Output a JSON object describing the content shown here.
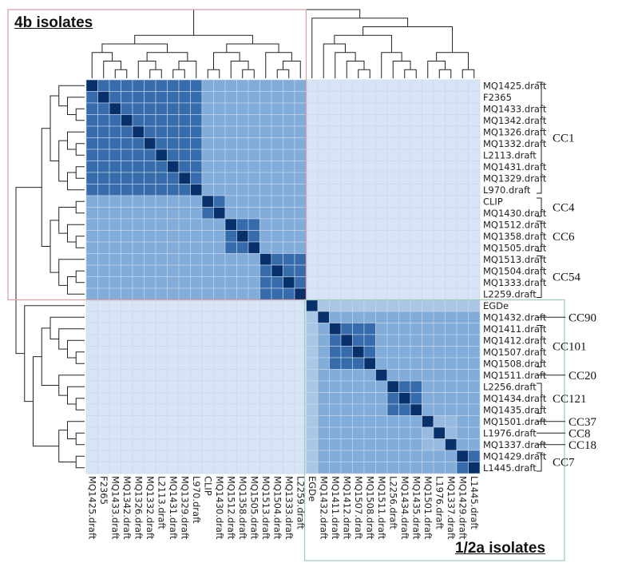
{
  "titles": {
    "group_4b": "4b isolates",
    "group_12a": "1/2a isolates"
  },
  "colors": {
    "low": "#e4edf9",
    "high": "#08306b",
    "grid": "#c9d6ea",
    "box_4b": "#d9a3a8",
    "box_12a": "#9fcfb8",
    "line": "#222222"
  },
  "chart_data": {
    "type": "heatmap",
    "title": "",
    "labels": [
      "MQ1425.draft",
      "F2365",
      "MQ1433.draft",
      "MQ1342.draft",
      "MQ1326.draft",
      "MQ1332.draft",
      "L2113.draft",
      "MQ1431.draft",
      "MQ1329.draft",
      "L970.draft",
      "CLIP",
      "MQ1430.draft",
      "MQ1512.draft",
      "MQ1358.draft",
      "MQ1505.draft",
      "MQ1513.draft",
      "MQ1504.draft",
      "MQ1333.draft",
      "L2259.draft",
      "EGDe",
      "MQ1432.draft",
      "MQ1411.draft",
      "MQ1412.draft",
      "MQ1507.draft",
      "MQ1508.draft",
      "MQ1511.draft",
      "L2256.draft",
      "MQ1434.draft",
      "MQ1435.draft",
      "MQ1501.draft",
      "L1976.draft",
      "MQ1337.draft",
      "MQ1429.draft",
      "L1445.draft"
    ],
    "groups": [
      {
        "name": "4b isolates",
        "members": [
          0,
          18
        ]
      },
      {
        "name": "1/2a isolates",
        "members": [
          19,
          33
        ]
      }
    ],
    "clonal_complexes": [
      {
        "name": "CC1",
        "rows": [
          0,
          9
        ]
      },
      {
        "name": "CC4",
        "rows": [
          10,
          11
        ]
      },
      {
        "name": "CC6",
        "rows": [
          12,
          14
        ]
      },
      {
        "name": "CC54",
        "rows": [
          15,
          18
        ]
      },
      {
        "name": "CC90",
        "rows": [
          20,
          20
        ]
      },
      {
        "name": "CC101",
        "rows": [
          21,
          24
        ]
      },
      {
        "name": "CC20",
        "rows": [
          25,
          25
        ]
      },
      {
        "name": "CC121",
        "rows": [
          26,
          28
        ]
      },
      {
        "name": "CC37",
        "rows": [
          29,
          29
        ]
      },
      {
        "name": "CC8",
        "rows": [
          30,
          30
        ]
      },
      {
        "name": "CC18",
        "rows": [
          31,
          31
        ]
      },
      {
        "name": "CC7",
        "rows": [
          32,
          33
        ]
      }
    ],
    "similarity_levels": {
      "self": 1.0,
      "within_cc": 0.72,
      "within_group": 0.38,
      "between_groups": 0.05,
      "egde_to_12a": 0.22,
      "cc37_cc8_cc18_cluster": 0.3
    },
    "dendrogram": "hierarchical clustering of isolates (rows and columns)",
    "legend": "none",
    "grid": true
  }
}
